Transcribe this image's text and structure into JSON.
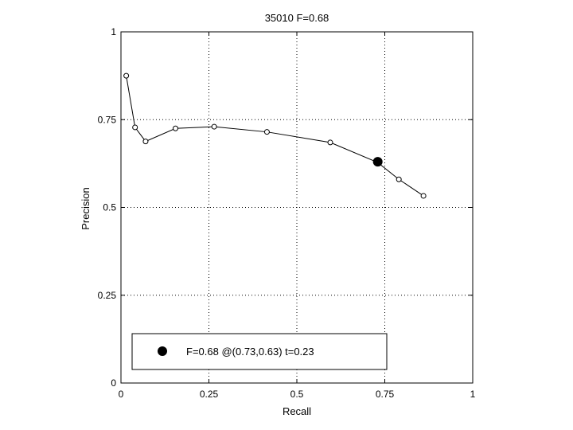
{
  "chart_data": {
    "type": "line",
    "title": "35010 F=0.68",
    "xlabel": "Recall",
    "ylabel": "Precision",
    "xlim": [
      0,
      1
    ],
    "ylim": [
      0,
      1
    ],
    "grid": true,
    "grid_style": "dotted",
    "x_ticks": [
      0,
      0.25,
      0.5,
      0.75,
      1
    ],
    "y_ticks": [
      0,
      0.25,
      0.5,
      0.75,
      1
    ],
    "x_tick_labels": [
      "0",
      "0.25",
      "0.5",
      "0.75",
      "1"
    ],
    "y_tick_labels": [
      "0",
      "0.25",
      "0.5",
      "0.75",
      "1"
    ],
    "series": [
      {
        "marker": "open-circle",
        "color": "#000000",
        "x": [
          0.015,
          0.04,
          0.07,
          0.155,
          0.265,
          0.415,
          0.595,
          0.73,
          0.79,
          0.86
        ],
        "y": [
          0.875,
          0.728,
          0.688,
          0.725,
          0.73,
          0.715,
          0.685,
          0.628,
          0.58,
          0.533
        ]
      }
    ],
    "highlight_point": {
      "x": 0.73,
      "y": 0.63,
      "marker": "filled-circle",
      "color": "#000000"
    },
    "legend": {
      "placement": "bottom-left",
      "text": "F=0.68 @(0.73,0.63) t=0.23"
    }
  }
}
